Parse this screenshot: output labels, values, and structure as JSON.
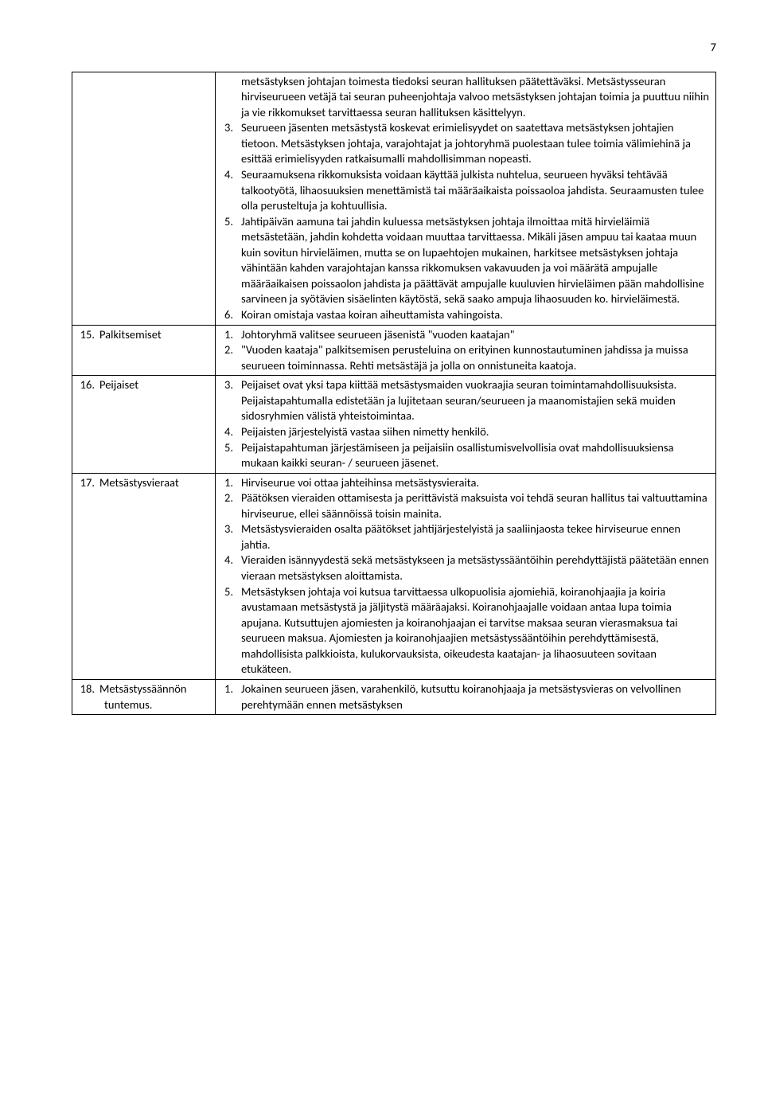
{
  "page_number": "7",
  "rows": [
    {
      "label": null,
      "startNum": 3,
      "preText": "metsästyksen johtajan toimesta tiedoksi seuran hallituksen päätettäväksi. Metsästysseuran hirviseurueen vetäjä tai seuran puheenjohtaja valvoo metsästyksen johtajan toimia ja puuttuu niihin ja vie rikkomukset tarvittaessa seuran hallituksen käsittelyyn.",
      "items": [
        "Seurueen jäsenten metsästystä koskevat erimielisyydet on saatettava metsästyksen johtajien tietoon. Metsästyksen johtaja, varajohtajat ja johtoryhmä puolestaan tulee toimia välimiehinä ja esittää erimielisyyden ratkaisumalli mahdollisimman nopeasti.",
        "Seuraamuksena rikkomuksista voidaan käyttää julkista nuhtelua, seurueen hyväksi tehtävää talkootyötä, lihaosuuksien menettämistä tai määräaikaista poissaoloa jahdista. Seuraamusten tulee olla perusteltuja ja kohtuullisia.",
        "Jahtipäivän aamuna tai jahdin kuluessa metsästyksen johtaja ilmoittaa mitä hirvieläimiä metsästetään, jahdin kohdetta voidaan muuttaa tarvittaessa. Mikäli jäsen ampuu tai kaataa muun kuin sovitun hirvieläimen, mutta se on lupaehtojen mukainen, harkitsee metsästyksen johtaja vähintään kahden varajohtajan kanssa rikkomuksen vakavuuden ja voi määrätä ampujalle määräaikaisen poissaolon jahdista ja päättävät ampujalle kuuluvien hirvieläimen pään mahdollisine sarvineen ja syötävien sisäelinten käytöstä, sekä saako ampuja lihaosuuden ko. hirvieläimestä.",
        "Koiran omistaja vastaa koiran aiheuttamista vahingoista."
      ]
    },
    {
      "label": {
        "num": "15.",
        "text": "Palkitsemiset"
      },
      "startNum": 1,
      "items": [
        "Johtoryhmä valitsee seurueen jäsenistä \"vuoden kaatajan\"",
        "\"Vuoden kaataja\" palkitsemisen perusteluina on erityinen kunnostautuminen jahdissa ja muissa seurueen toiminnassa. Rehti metsästäjä ja jolla on onnistuneita kaatoja."
      ]
    },
    {
      "label": {
        "num": "16.",
        "text": "Peijaiset"
      },
      "startNum": 3,
      "items": [
        "Peijaiset ovat yksi tapa kiittää metsästysmaiden vuokraajia seuran toimintamahdollisuuksista. Peijaistapahtumalla edistetään ja lujitetaan seuran/seurueen ja maanomistajien sekä muiden sidosryhmien välistä yhteistoimintaa.",
        "Peijaisten järjestelyistä vastaa siihen nimetty henkilö.",
        "Peijaistapahtuman järjestämiseen ja peijaisiin osallistumisvelvollisia ovat mahdollisuuksiensa mukaan kaikki seuran- / seurueen jäsenet."
      ]
    },
    {
      "label": {
        "num": "17.",
        "text": "Metsästysvieraat"
      },
      "startNum": 1,
      "items": [
        "Hirviseurue voi ottaa jahteihinsa metsästysvieraita.",
        "Päätöksen vieraiden ottamisesta ja perittävistä maksuista voi tehdä seuran hallitus tai valtuuttamina hirviseurue, ellei säännöissä toisin mainita.",
        "Metsästysvieraiden osalta päätökset jahtijärjestelyistä ja saaliinjaosta tekee hirviseurue ennen jahtia.",
        "Vieraiden isännyydestä sekä metsästykseen ja metsästyssääntöihin perehdyttäjistä päätetään ennen vieraan metsästyksen aloittamista.",
        "Metsästyksen johtaja voi kutsua tarvittaessa ulkopuolisia ajomiehiä, koiranohjaajia ja koiria avustamaan metsästystä ja jäljitystä määräajaksi. Koiranohjaajalle voidaan antaa lupa toimia apujana. Kutsuttujen ajomiesten ja koiranohjaajan ei tarvitse maksaa seuran vierasmaksua tai seurueen maksua. Ajomiesten ja koiranohjaajien metsästyssääntöihin perehdyttämisestä, mahdollisista palkkioista, kulukorvauksista, oikeudesta kaatajan- ja lihaosuuteen sovitaan etukäteen."
      ]
    },
    {
      "label": {
        "num": "18.",
        "text": "Metsästyssäännön",
        "sub": "tuntemus."
      },
      "startNum": 1,
      "items": [
        "Jokainen seurueen jäsen, varahenkilö, kutsuttu koiranohjaaja ja metsästysvieras on velvollinen perehtymään ennen metsästyksen"
      ]
    }
  ]
}
